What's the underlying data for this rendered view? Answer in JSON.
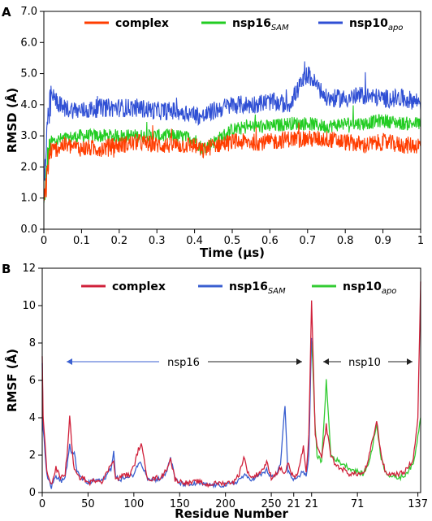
{
  "chart_data": [
    {
      "panel_label": "A",
      "type": "line",
      "xlabel": "Time (μs)",
      "ylabel": "RMSD (Å)",
      "xlim": [
        0,
        1
      ],
      "ylim": [
        0,
        7
      ],
      "x_ticks": [
        "0",
        "0.1",
        "0.2",
        "0.3",
        "0.4",
        "0.5",
        "0.6",
        "0.7",
        "0.8",
        "0.9",
        "1"
      ],
      "y_ticks": [
        "0.0",
        "1.0",
        "2.0",
        "3.0",
        "4.0",
        "5.0",
        "6.0",
        "7.0"
      ],
      "legend_position": "top",
      "series": [
        {
          "name": "complex",
          "color": "#ff3d00",
          "x": [
            0,
            0.01,
            0.02,
            0.05,
            0.1,
            0.15,
            0.2,
            0.25,
            0.3,
            0.35,
            0.4,
            0.42,
            0.45,
            0.5,
            0.55,
            0.6,
            0.65,
            0.7,
            0.75,
            0.8,
            0.85,
            0.9,
            0.95,
            1.0
          ],
          "y": [
            0.6,
            2.0,
            2.5,
            2.7,
            2.6,
            2.6,
            2.7,
            2.8,
            2.7,
            2.7,
            2.7,
            2.5,
            2.7,
            2.8,
            2.8,
            2.8,
            2.9,
            2.9,
            2.9,
            2.8,
            2.7,
            2.8,
            2.7,
            2.7
          ]
        },
        {
          "name": "nsp16SAM",
          "color": "#22cc22",
          "x": [
            0,
            0.01,
            0.02,
            0.05,
            0.1,
            0.15,
            0.2,
            0.25,
            0.3,
            0.35,
            0.4,
            0.42,
            0.45,
            0.5,
            0.55,
            0.6,
            0.65,
            0.7,
            0.75,
            0.8,
            0.85,
            0.9,
            0.95,
            1.0
          ],
          "y": [
            0.7,
            2.3,
            2.8,
            2.9,
            3.0,
            3.0,
            3.0,
            3.0,
            3.0,
            3.0,
            2.9,
            2.6,
            2.8,
            3.2,
            3.3,
            3.3,
            3.4,
            3.4,
            3.3,
            3.4,
            3.4,
            3.5,
            3.4,
            3.4
          ]
        },
        {
          "name": "nsp10apo",
          "color": "#2f4fd4",
          "x": [
            0,
            0.01,
            0.02,
            0.05,
            0.1,
            0.15,
            0.2,
            0.25,
            0.3,
            0.35,
            0.4,
            0.42,
            0.45,
            0.5,
            0.55,
            0.6,
            0.65,
            0.7,
            0.75,
            0.8,
            0.85,
            0.9,
            0.95,
            1.0
          ],
          "y": [
            1.5,
            3.2,
            4.3,
            3.9,
            3.8,
            3.9,
            3.9,
            3.9,
            3.8,
            3.8,
            3.7,
            3.6,
            3.8,
            4.0,
            4.0,
            4.1,
            4.0,
            5.0,
            4.2,
            4.2,
            4.3,
            4.2,
            4.2,
            4.1
          ]
        }
      ]
    },
    {
      "panel_label": "B",
      "type": "line",
      "xlabel": "Residue Number",
      "ylabel": "RMSF (Å)",
      "ylim": [
        0,
        12
      ],
      "x_ticks": [
        "0",
        "50",
        "100",
        "150",
        "200",
        "250",
        "21",
        "21",
        "71",
        "137"
      ],
      "y_ticks": [
        "0",
        "2",
        "4",
        "6",
        "8",
        "10",
        "12"
      ],
      "legend_position": "top",
      "annotations": [
        "nsp16",
        "nsp10"
      ],
      "series": [
        {
          "name": "complex",
          "color": "#d0203a",
          "segment": "nsp16+nsp10",
          "x": [
            0,
            1,
            5,
            10,
            15,
            20,
            25,
            28,
            30,
            32,
            35,
            40,
            45,
            50,
            55,
            60,
            65,
            70,
            75,
            78,
            80,
            85,
            90,
            95,
            100,
            105,
            108,
            112,
            115,
            120,
            125,
            130,
            135,
            140,
            145,
            150,
            160,
            170,
            180,
            190,
            200,
            210,
            215,
            220,
            225,
            230,
            240,
            245,
            250,
            255,
            260,
            265,
            268,
            272,
            276,
            280,
            285,
            288,
            291,
            294,
            298,
            300,
            305,
            310,
            315,
            320,
            325,
            330,
            335,
            340,
            345,
            350,
            355,
            360,
            365,
            370,
            375,
            380,
            385,
            390,
            395,
            400,
            405,
            410,
            413
          ],
          "y": [
            7.3,
            4.0,
            1.2,
            0.4,
            1.3,
            0.8,
            1.0,
            2.5,
            4.2,
            2.6,
            1.2,
            0.8,
            0.8,
            0.5,
            0.6,
            0.7,
            0.6,
            1.0,
            1.5,
            1.8,
            0.7,
            0.8,
            1.0,
            0.9,
            1.4,
            2.3,
            2.6,
            1.5,
            0.8,
            0.7,
            0.8,
            0.8,
            1.2,
            1.8,
            0.7,
            0.6,
            0.5,
            0.6,
            0.4,
            0.5,
            0.5,
            0.6,
            1.0,
            1.9,
            1.0,
            0.8,
            1.2,
            1.6,
            0.8,
            1.0,
            1.3,
            1.0,
            1.6,
            1.0,
            0.7,
            1.3,
            2.4,
            1.0,
            3.0,
            10.3,
            3.0,
            2.5,
            1.8,
            3.6,
            2.0,
            1.5,
            1.3,
            1.2,
            1.0,
            1.0,
            1.0,
            1.0,
            1.5,
            2.7,
            3.8,
            2.0,
            1.0,
            1.0,
            1.0,
            1.0,
            1.1,
            1.4,
            1.8,
            4.0,
            11.2
          ]
        },
        {
          "name": "nsp16SAM",
          "color": "#3a5fd0",
          "segment": "nsp16",
          "x": [
            0,
            1,
            5,
            10,
            15,
            20,
            25,
            28,
            30,
            32,
            35,
            38,
            40,
            45,
            50,
            55,
            60,
            65,
            70,
            75,
            78,
            80,
            85,
            90,
            95,
            100,
            105,
            108,
            112,
            115,
            120,
            125,
            130,
            135,
            140,
            145,
            150,
            160,
            170,
            180,
            190,
            200,
            210,
            215,
            220,
            225,
            230,
            240,
            245,
            250,
            255,
            260,
            265,
            268,
            272,
            276,
            280,
            285,
            288,
            291,
            293,
            294
          ],
          "y": [
            7.0,
            3.5,
            1.0,
            0.3,
            0.9,
            0.6,
            0.8,
            1.8,
            2.5,
            2.0,
            2.2,
            1.2,
            0.9,
            0.7,
            0.5,
            0.6,
            0.7,
            0.6,
            0.9,
            1.3,
            2.2,
            0.8,
            0.7,
            0.8,
            0.8,
            1.0,
            1.6,
            1.5,
            1.2,
            0.8,
            0.7,
            0.7,
            0.8,
            1.0,
            1.9,
            0.7,
            0.5,
            0.4,
            0.5,
            0.4,
            0.4,
            0.4,
            0.5,
            0.7,
            0.9,
            0.8,
            0.7,
            1.0,
            1.2,
            0.8,
            0.9,
            1.5,
            4.7,
            1.2,
            0.8,
            0.6,
            0.8,
            1.2,
            0.8,
            2.0,
            6.5,
            8.2
          ]
        },
        {
          "name": "nsp10apo",
          "color": "#33cc33",
          "segment": "nsp10",
          "x": [
            294,
            298,
            300,
            305,
            310,
            315,
            320,
            325,
            330,
            335,
            340,
            345,
            350,
            355,
            360,
            365,
            370,
            375,
            380,
            385,
            390,
            395,
            400,
            405,
            410,
            413
          ],
          "y": [
            8.2,
            3.5,
            2.0,
            1.6,
            6.0,
            2.0,
            1.8,
            1.6,
            1.5,
            1.3,
            1.2,
            1.1,
            1.0,
            1.4,
            2.3,
            3.7,
            1.8,
            1.1,
            0.9,
            0.8,
            0.8,
            0.9,
            1.2,
            1.5,
            3.0,
            4.1
          ]
        }
      ]
    }
  ]
}
